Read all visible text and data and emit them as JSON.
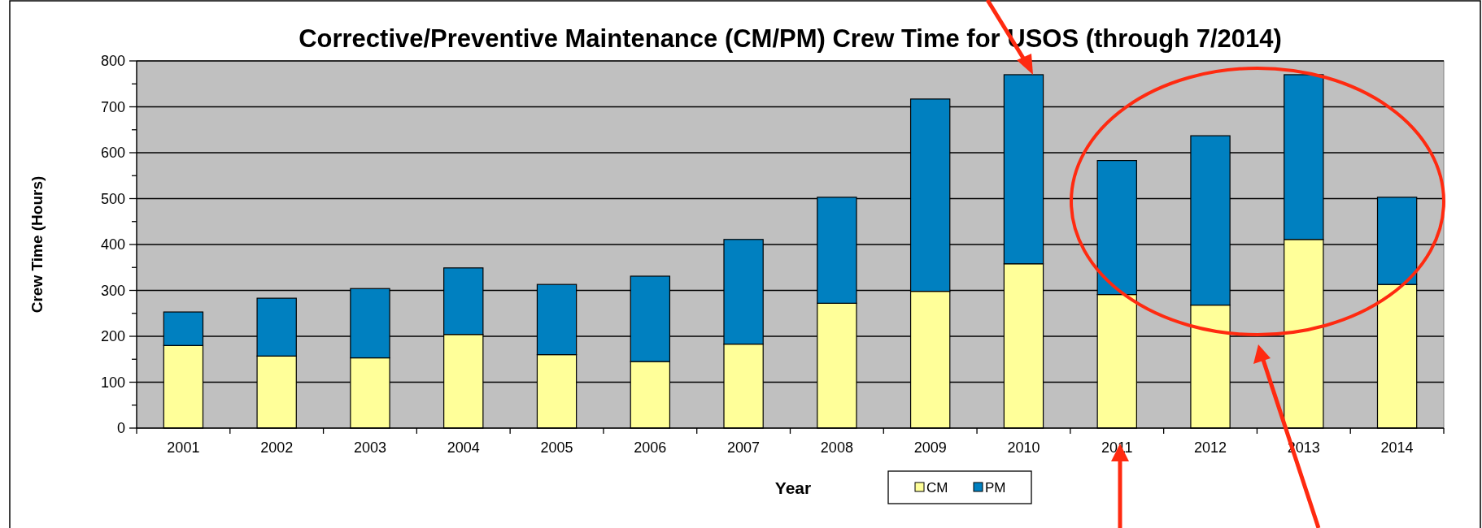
{
  "chart_data": {
    "type": "bar",
    "stacked": true,
    "title": "Corrective/Preventive Maintenance (CM/PM) Crew Time for USOS (through 7/2014)",
    "xlabel": "Year",
    "ylabel": "Crew Time (Hours)",
    "categories": [
      "2001",
      "2002",
      "2003",
      "2004",
      "2005",
      "2006",
      "2007",
      "2008",
      "2009",
      "2010",
      "2011",
      "2012",
      "2013",
      "2014"
    ],
    "series": [
      {
        "name": "CM",
        "color": "#ffff99",
        "values": [
          180,
          157,
          153,
          204,
          160,
          145,
          183,
          272,
          298,
          358,
          291,
          268,
          411,
          313
        ]
      },
      {
        "name": "PM",
        "color": "#0080c0",
        "values": [
          73,
          126,
          151,
          145,
          153,
          186,
          228,
          231,
          419,
          412,
          292,
          369,
          359,
          190
        ]
      }
    ],
    "ylim": [
      0,
      800
    ],
    "yticks": [
      0,
      {
        "value": 50,
        "label": null
      },
      100,
      {
        "value": 150,
        "label": null
      },
      200,
      {
        "value": 250,
        "label": null
      },
      300,
      {
        "value": 350,
        "label": null
      },
      400,
      {
        "value": 450,
        "label": null
      },
      500,
      {
        "value": 550,
        "label": null
      },
      600,
      {
        "value": 650,
        "label": null
      },
      700,
      {
        "value": 750,
        "label": null
      },
      800
    ],
    "grid": "y",
    "legend": "bottom"
  }
}
